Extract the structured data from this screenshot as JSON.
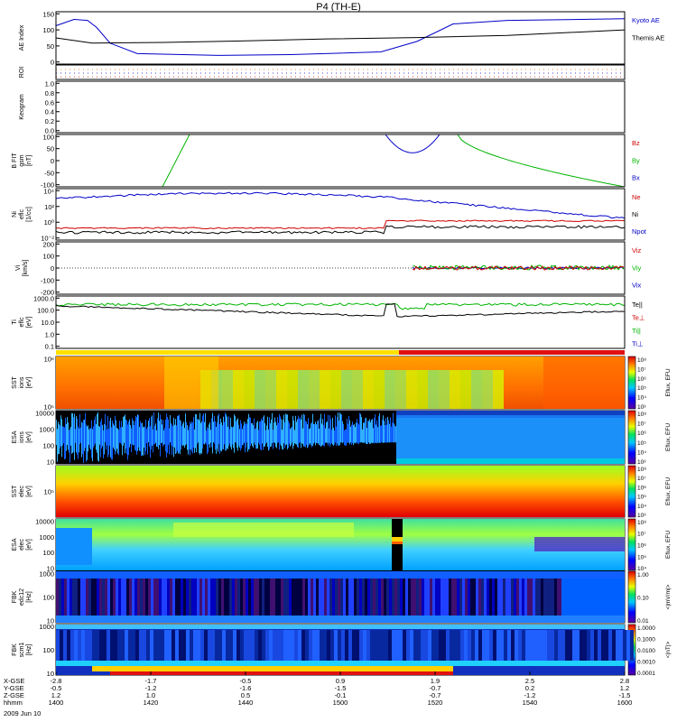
{
  "title": "P4 (TH-E)",
  "date_label": "2009 Jun 10",
  "colors": {
    "blue": "#0000c8",
    "red": "#d00000",
    "green": "#00b400",
    "black": "#000000"
  },
  "panels": [
    {
      "id": "ae",
      "ylabel": [
        "AE Index"
      ],
      "ticks": [
        "0",
        "50",
        "100",
        "150"
      ],
      "legend": [
        {
          "text": "Kyoto AE",
          "color": "#0000c8"
        },
        {
          "text": "Themis AE",
          "color": "#000000"
        }
      ]
    },
    {
      "id": "roi",
      "ylabel": [
        "ROI"
      ],
      "ticks": [],
      "legend": []
    },
    {
      "id": "keogram",
      "ylabel": [
        "Keogram"
      ],
      "ticks": [
        "0.0",
        "0.2",
        "0.4",
        "0.6",
        "0.8",
        "1.0"
      ],
      "legend": []
    },
    {
      "id": "bfit",
      "ylabel": [
        "B FIT",
        "gsm",
        "[nT]"
      ],
      "ticks": [
        "-100",
        "-50",
        "0",
        "50",
        "100"
      ],
      "legend": [
        {
          "text": "Bz",
          "color": "#d00000"
        },
        {
          "text": "By",
          "color": "#00b400"
        },
        {
          "text": "Bx",
          "color": "#0000c8"
        }
      ]
    },
    {
      "id": "ni",
      "ylabel": [
        "Ni",
        "eflc",
        "[1/cc]"
      ],
      "ticks": [
        "10⁻²",
        "10⁰",
        "10²",
        "10⁴"
      ],
      "legend": [
        {
          "text": "Ne",
          "color": "#d00000"
        },
        {
          "text": "Ni",
          "color": "#000000"
        },
        {
          "text": "Npot",
          "color": "#0000c8"
        }
      ]
    },
    {
      "id": "vi",
      "ylabel": [
        "Vi",
        "[km/s]"
      ],
      "ticks": [
        "-200",
        "-100",
        "0",
        "100",
        "200"
      ],
      "legend": [
        {
          "text": "Viz",
          "color": "#d00000"
        },
        {
          "text": "Viy",
          "color": "#00b400"
        },
        {
          "text": "Vix",
          "color": "#0000c8"
        }
      ]
    },
    {
      "id": "ti",
      "ylabel": [
        "Ti",
        "eflc",
        "[eV]"
      ],
      "ticks": [
        "0.1",
        "1.0",
        "10.0",
        "100.0",
        "1000.0"
      ],
      "legend": [
        {
          "text": "Te||",
          "color": "#000000"
        },
        {
          "text": "Te⊥",
          "color": "#d00000"
        },
        {
          "text": "Ti||",
          "color": "#00b400"
        },
        {
          "text": "Ti⊥",
          "color": "#0000c8"
        }
      ]
    },
    {
      "id": "sst1",
      "ylabel": [
        "SST",
        "ions",
        "[eV]"
      ],
      "ticks": [
        "10⁵",
        "10⁶"
      ],
      "cbar": [
        "10³",
        "10⁴",
        "10⁵",
        "10⁶",
        "10⁷",
        "10⁸"
      ],
      "cbar_label": "Eflux, EFU"
    },
    {
      "id": "esa1",
      "ylabel": [
        "ESA",
        "ions",
        "[eV]"
      ],
      "ticks": [
        "10",
        "100",
        "1000",
        "10000"
      ],
      "cbar": [
        "10³",
        "10⁴",
        "10⁵",
        "10⁶",
        "10⁷",
        "10⁸"
      ],
      "cbar_label": "Eflux, EFU"
    },
    {
      "id": "sst2",
      "ylabel": [
        "SST",
        "elec",
        "[eV]"
      ],
      "ticks": [
        "10⁵"
      ],
      "cbar": [
        "10³",
        "10⁴",
        "10⁵",
        "10⁶",
        "10⁷",
        "10⁸"
      ],
      "cbar_label": "Eflux, EFU"
    },
    {
      "id": "esa2",
      "ylabel": [
        "ESA",
        "elec",
        "[eV]"
      ],
      "ticks": [
        "10",
        "100",
        "1000",
        "10000"
      ],
      "cbar": [
        "10⁴",
        "10⁵",
        "10⁶",
        "10⁷",
        "10⁸"
      ],
      "cbar_label": "Eflux, EFU"
    },
    {
      "id": "fbk1",
      "ylabel": [
        "FBK",
        "edc12",
        "[Hz]"
      ],
      "ticks": [
        "10",
        "100",
        "1000"
      ],
      "cbar": [
        "0.01",
        "0.10",
        "1.00"
      ],
      "cbar_label": "<|mV/m|>"
    },
    {
      "id": "fbk2",
      "ylabel": [
        "FBK",
        "scm1",
        "[Hz]"
      ],
      "ticks": [
        "10",
        "100",
        "1000"
      ],
      "cbar": [
        "0.0001",
        "0.0010",
        "0.0100",
        "0.1000",
        "1.0000"
      ],
      "cbar_label": "<|nT|>"
    }
  ],
  "xaxis": {
    "row_labels": [
      "X-GSE",
      "Y-GSE",
      "Z-GSE",
      "hhmm"
    ],
    "ticks": [
      {
        "x": "-2.8",
        "y": "-0.5",
        "z": "1.2",
        "t": "1400"
      },
      {
        "x": "-1.7",
        "y": "-1.2",
        "z": "1.0",
        "t": "1420"
      },
      {
        "x": "-0.5",
        "y": "-1.6",
        "z": "0.5",
        "t": "1440"
      },
      {
        "x": "0.9",
        "y": "-1.5",
        "z": "-0.1",
        "t": "1500"
      },
      {
        "x": "1.9",
        "y": "-0.7",
        "z": "-0.7",
        "t": "1520"
      },
      {
        "x": "2.5",
        "y": "0.2",
        "z": "-1.2",
        "t": "1540"
      },
      {
        "x": "2.8",
        "y": "1.2",
        "z": "-1.5",
        "t": "1600"
      }
    ]
  },
  "chart_data": {
    "type": "line",
    "title": "P4 (TH-E)",
    "x_unit": "hhmm",
    "x": [
      "1400",
      "1420",
      "1440",
      "1500",
      "1520",
      "1540",
      "1600"
    ],
    "series": [
      {
        "name": "Kyoto AE",
        "values": [
          128,
          40,
          25,
          30,
          60,
          120,
          130
        ]
      },
      {
        "name": "Themis AE",
        "values": [
          75,
          60,
          65,
          70,
          75,
          80,
          95
        ]
      }
    ],
    "ylim": [
      0,
      150
    ]
  }
}
